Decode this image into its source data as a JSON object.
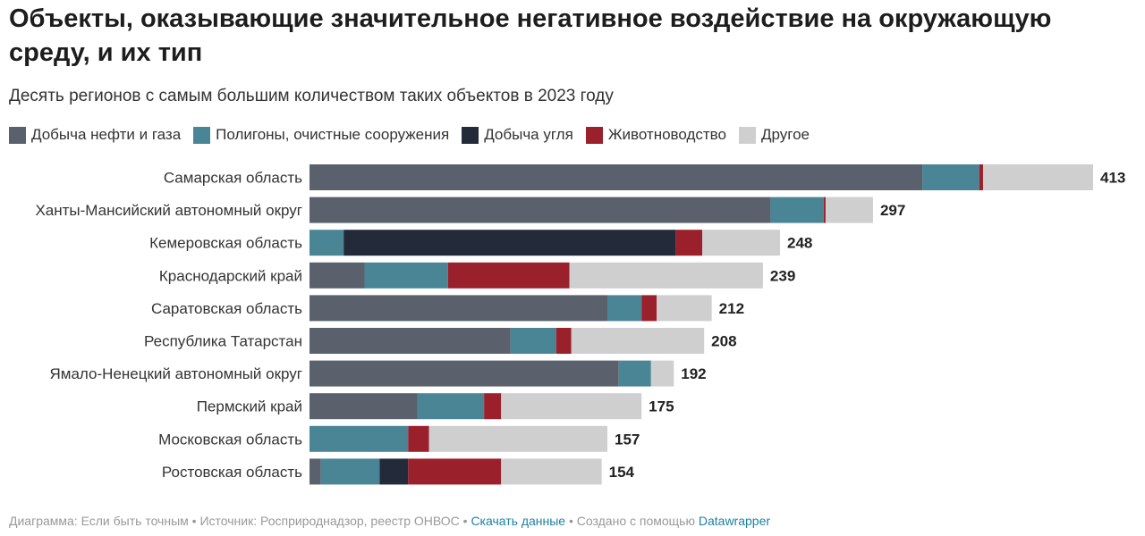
{
  "title": "Объекты, оказывающие значительное негативное воздействие на окружающую среду, и их тип",
  "subtitle": "Десять регионов с самым большим количеством таких объектов в 2023 году",
  "footer": {
    "chart": "Диаграмма: Если быть точным",
    "source": "Источник: Росприроднадзор, реестр ОНВОС",
    "download": "Скачать данные",
    "made": "Создано с помощью",
    "tool": "Datawrapper",
    "sep": " • "
  },
  "chart_data": {
    "type": "bar",
    "orientation": "horizontal",
    "stacked": true,
    "legend": "top-left",
    "grid": false,
    "xlim": [
      0,
      413
    ],
    "categories": [
      "Самарская область",
      "Ханты-Мансийский автономный округ",
      "Кемеровская область",
      "Краснодарский край",
      "Саратовская область",
      "Республика Татарстан",
      "Ямало-Ненецкий автономный округ",
      "Пермский край",
      "Московская область",
      "Ростовская область"
    ],
    "totals": [
      413,
      297,
      248,
      239,
      212,
      208,
      192,
      175,
      157,
      154
    ],
    "series": [
      {
        "name": "Добыча нефти и газа",
        "color": "#5a606c",
        "values": [
          323,
          243,
          0,
          29,
          157,
          106,
          163,
          57,
          0,
          6
        ]
      },
      {
        "name": "Полигоны, очистные сооружения",
        "color": "#4a8595",
        "values": [
          30,
          28,
          18,
          44,
          18,
          24,
          17,
          35,
          52,
          31
        ]
      },
      {
        "name": "Добыча угля",
        "color": "#232a3a",
        "values": [
          0,
          0,
          175,
          0,
          0,
          0,
          0,
          0,
          0,
          15
        ]
      },
      {
        "name": "Животноводство",
        "color": "#9a202c",
        "values": [
          2,
          1,
          14,
          64,
          8,
          8,
          0,
          9,
          11,
          49
        ]
      },
      {
        "name": "Другое",
        "color": "#cfcfcf",
        "values": [
          58,
          25,
          41,
          102,
          29,
          70,
          12,
          74,
          94,
          53
        ]
      }
    ]
  }
}
